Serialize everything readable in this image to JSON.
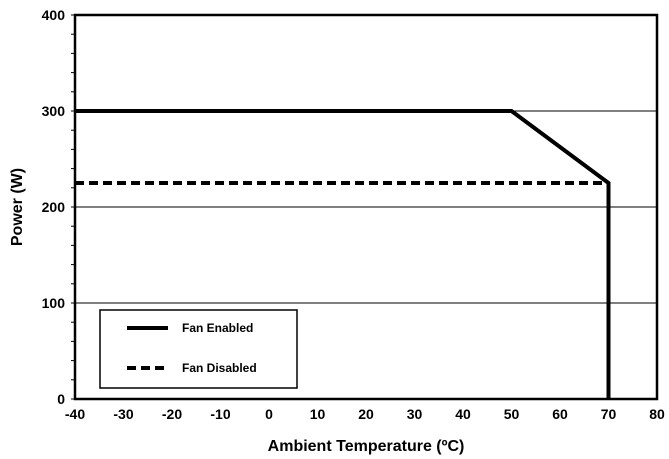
{
  "chart_data": {
    "type": "line",
    "title": "",
    "xlabel": "Ambient Temperature (ºC)",
    "ylabel": "Power (W)",
    "xlim": [
      -40,
      80
    ],
    "ylim": [
      0,
      400
    ],
    "x_ticks": [
      -40,
      -30,
      -20,
      -10,
      0,
      10,
      20,
      30,
      40,
      50,
      60,
      70,
      80
    ],
    "y_ticks": [
      0,
      100,
      200,
      300,
      400
    ],
    "grid": "horizontal major lines",
    "legend_placement": "bottom-left",
    "series": [
      {
        "name": "Fan Enabled",
        "style": "solid",
        "color": "#000000",
        "points": [
          [
            -40,
            300
          ],
          [
            50,
            300
          ],
          [
            70,
            225
          ],
          [
            70,
            0
          ]
        ]
      },
      {
        "name": "Fan Disabled",
        "style": "dashed",
        "color": "#000000",
        "points": [
          [
            -40,
            225
          ],
          [
            70,
            225
          ]
        ]
      }
    ]
  }
}
